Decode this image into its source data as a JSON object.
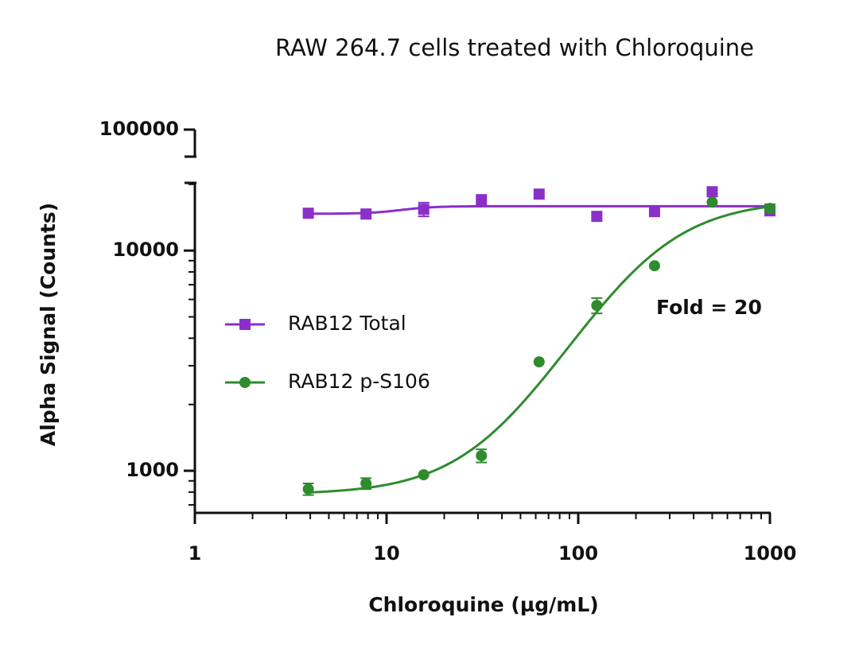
{
  "chart_data": {
    "type": "scatter",
    "title": "RAW 264.7 cells treated with Chloroquine",
    "x_label": "Chloroquine (µg/mL)",
    "y_label": "Alpha Signal (Counts)",
    "x": [
      3.90625,
      7.8125,
      15.625,
      31.25,
      62.5,
      125,
      250,
      500,
      1000
    ],
    "series": [
      {
        "name": "RAB12 Total",
        "color": "#8b2fc9",
        "marker": "square",
        "values": [
          14780,
          14660,
          15400,
          17030,
          18050,
          14300,
          15030,
          18500,
          15150
        ],
        "errors": [
          0,
          0,
          1100,
          0,
          0,
          0,
          0,
          0,
          700
        ],
        "fit": {
          "bottom": 14700,
          "top": 15900,
          "ec50": 12,
          "hill": 5
        }
      },
      {
        "name": "RAB12 p-S106",
        "color": "#2e8b2e",
        "marker": "circle",
        "values": [
          826,
          876,
          959,
          1171,
          3124,
          5636,
          8536,
          16600,
          15540
        ],
        "errors": [
          50,
          50,
          0,
          80,
          0,
          450,
          0,
          0,
          700
        ],
        "fit": {
          "bottom": 780,
          "top": 17000,
          "ec50": 220,
          "hill": 1.7
        }
      }
    ],
    "annotation": {
      "text": "Fold = 20",
      "color": "#2e8b2e"
    },
    "xscale": "log",
    "yscale": "log",
    "xlim": [
      1,
      1000
    ],
    "xticks": [
      1,
      10,
      100,
      1000
    ],
    "ylim": [
      644,
      20300
    ],
    "yticks": [
      1000,
      10000
    ],
    "y_break_ticks": [
      100000
    ],
    "legend": "left"
  }
}
